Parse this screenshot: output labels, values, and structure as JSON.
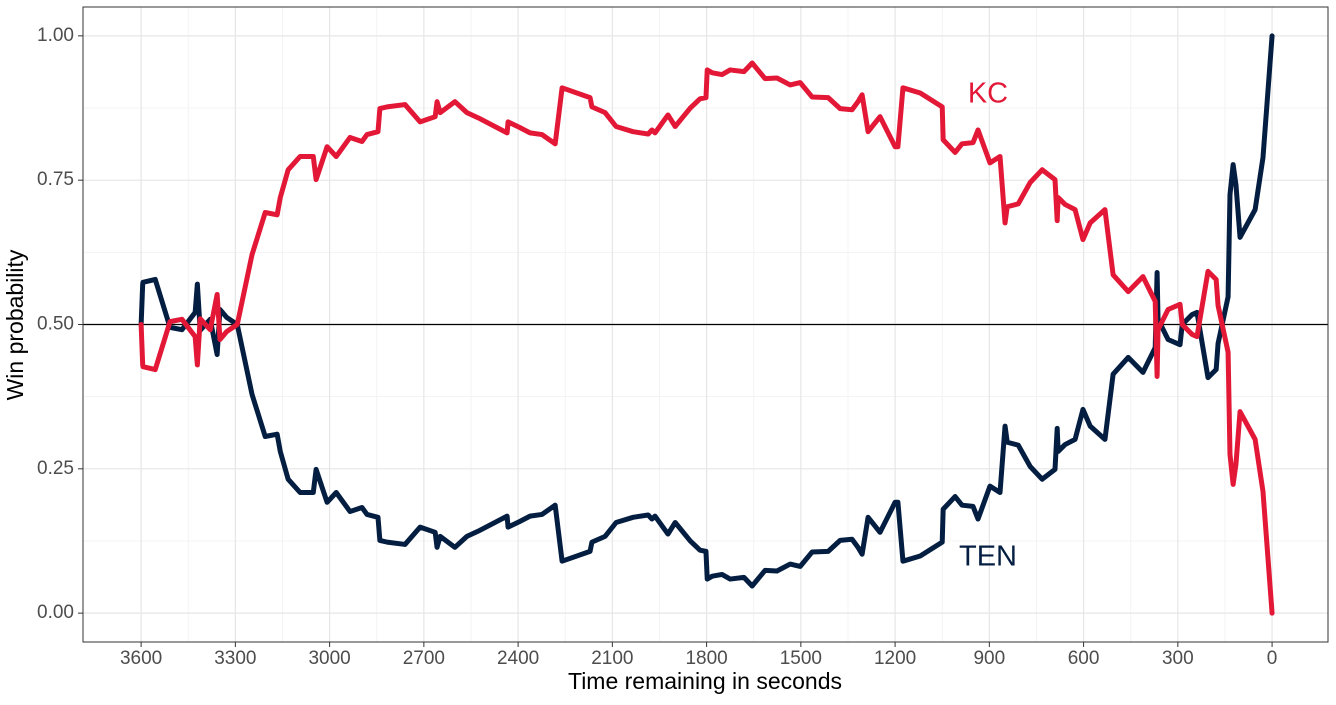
{
  "chart_data": {
    "type": "line",
    "x_label": "Time remaining in seconds",
    "y_label": "Win probability",
    "xlim": [
      3785,
      -178
    ],
    "ylim": [
      -0.05,
      1.05
    ],
    "xticks": [
      3600,
      3300,
      3000,
      2700,
      2400,
      2100,
      1800,
      1500,
      1200,
      900,
      600,
      300,
      0
    ],
    "yticks": [
      {
        "value": 0,
        "label": "0.00"
      },
      {
        "value": 0.25,
        "label": "0.25"
      },
      {
        "value": 0.5,
        "label": "0.50"
      },
      {
        "value": 0.75,
        "label": "0.75"
      },
      {
        "value": 1,
        "label": "1.00"
      }
    ],
    "grid": true,
    "hline": 0.5,
    "x": [
      3600,
      3595,
      3594,
      3555,
      3508,
      3470,
      3428,
      3421,
      3412,
      3380,
      3358,
      3349,
      3327,
      3294,
      3247,
      3205,
      3167,
      3157,
      3132,
      3094,
      3052,
      3043,
      3008,
      2979,
      2935,
      2897,
      2881,
      2846,
      2840,
      2817,
      2760,
      2712,
      2664,
      2658,
      2648,
      2601,
      2563,
      2527,
      2435,
      2432,
      2394,
      2362,
      2324,
      2282,
      2260,
      2171,
      2165,
      2123,
      2088,
      2034,
      1986,
      1974,
      1964,
      1923,
      1900,
      1852,
      1821,
      1802,
      1798,
      1782,
      1751,
      1725,
      1681,
      1655,
      1614,
      1576,
      1534,
      1502,
      1464,
      1413,
      1375,
      1337,
      1318,
      1305,
      1286,
      1248,
      1200,
      1191,
      1175,
      1120,
      1050,
      1047,
      1009,
      987,
      952,
      936,
      898,
      866,
      850,
      843,
      808,
      770,
      732,
      691,
      684,
      681,
      659,
      627,
      602,
      579,
      532,
      506,
      458,
      411,
      372,
      366,
      363,
      331,
      293,
      286,
      255,
      239,
      204,
      178,
      172,
      140,
      134,
      124,
      115,
      102,
      54,
      29,
      0
    ],
    "series": [
      {
        "name": "TEN",
        "color": "#041e42",
        "values": [
          0.5,
          0.57,
          0.573,
          0.578,
          0.495,
          0.491,
          0.521,
          0.57,
          0.49,
          0.509,
          0.448,
          0.526,
          0.512,
          0.5,
          0.379,
          0.306,
          0.31,
          0.28,
          0.232,
          0.209,
          0.209,
          0.249,
          0.192,
          0.209,
          0.176,
          0.183,
          0.171,
          0.166,
          0.126,
          0.123,
          0.119,
          0.149,
          0.14,
          0.114,
          0.133,
          0.114,
          0.133,
          0.142,
          0.168,
          0.149,
          0.159,
          0.168,
          0.171,
          0.187,
          0.09,
          0.107,
          0.123,
          0.133,
          0.157,
          0.166,
          0.17,
          0.163,
          0.168,
          0.137,
          0.157,
          0.125,
          0.109,
          0.107,
          0.059,
          0.064,
          0.067,
          0.059,
          0.062,
          0.047,
          0.074,
          0.073,
          0.085,
          0.081,
          0.106,
          0.107,
          0.126,
          0.128,
          0.114,
          0.102,
          0.166,
          0.14,
          0.192,
          0.192,
          0.09,
          0.099,
          0.123,
          0.18,
          0.202,
          0.187,
          0.185,
          0.163,
          0.22,
          0.209,
          0.324,
          0.296,
          0.291,
          0.254,
          0.232,
          0.249,
          0.32,
          0.28,
          0.292,
          0.301,
          0.353,
          0.324,
          0.301,
          0.414,
          0.443,
          0.417,
          0.46,
          0.59,
          0.509,
          0.474,
          0.465,
          0.5,
          0.517,
          0.521,
          0.408,
          0.422,
          0.467,
          0.548,
          0.725,
          0.777,
          0.742,
          0.651,
          0.699,
          0.789,
          1.0
        ]
      },
      {
        "name": "KC",
        "color": "#e31837",
        "values": [
          0.5,
          0.43,
          0.427,
          0.422,
          0.505,
          0.509,
          0.479,
          0.43,
          0.51,
          0.491,
          0.552,
          0.474,
          0.488,
          0.5,
          0.621,
          0.694,
          0.69,
          0.72,
          0.768,
          0.791,
          0.791,
          0.751,
          0.808,
          0.791,
          0.824,
          0.817,
          0.829,
          0.834,
          0.874,
          0.877,
          0.881,
          0.851,
          0.86,
          0.886,
          0.867,
          0.886,
          0.867,
          0.858,
          0.832,
          0.851,
          0.841,
          0.832,
          0.829,
          0.813,
          0.91,
          0.893,
          0.877,
          0.867,
          0.843,
          0.834,
          0.83,
          0.837,
          0.832,
          0.863,
          0.843,
          0.875,
          0.891,
          0.893,
          0.941,
          0.936,
          0.933,
          0.941,
          0.938,
          0.953,
          0.926,
          0.927,
          0.915,
          0.919,
          0.894,
          0.893,
          0.874,
          0.872,
          0.886,
          0.898,
          0.834,
          0.86,
          0.808,
          0.808,
          0.91,
          0.901,
          0.877,
          0.82,
          0.798,
          0.813,
          0.815,
          0.837,
          0.78,
          0.791,
          0.676,
          0.704,
          0.709,
          0.746,
          0.768,
          0.751,
          0.68,
          0.72,
          0.708,
          0.699,
          0.647,
          0.676,
          0.699,
          0.586,
          0.557,
          0.583,
          0.54,
          0.41,
          0.491,
          0.526,
          0.535,
          0.5,
          0.483,
          0.479,
          0.592,
          0.578,
          0.533,
          0.452,
          0.275,
          0.223,
          0.258,
          0.349,
          0.301,
          0.211,
          0.0
        ]
      }
    ]
  }
}
